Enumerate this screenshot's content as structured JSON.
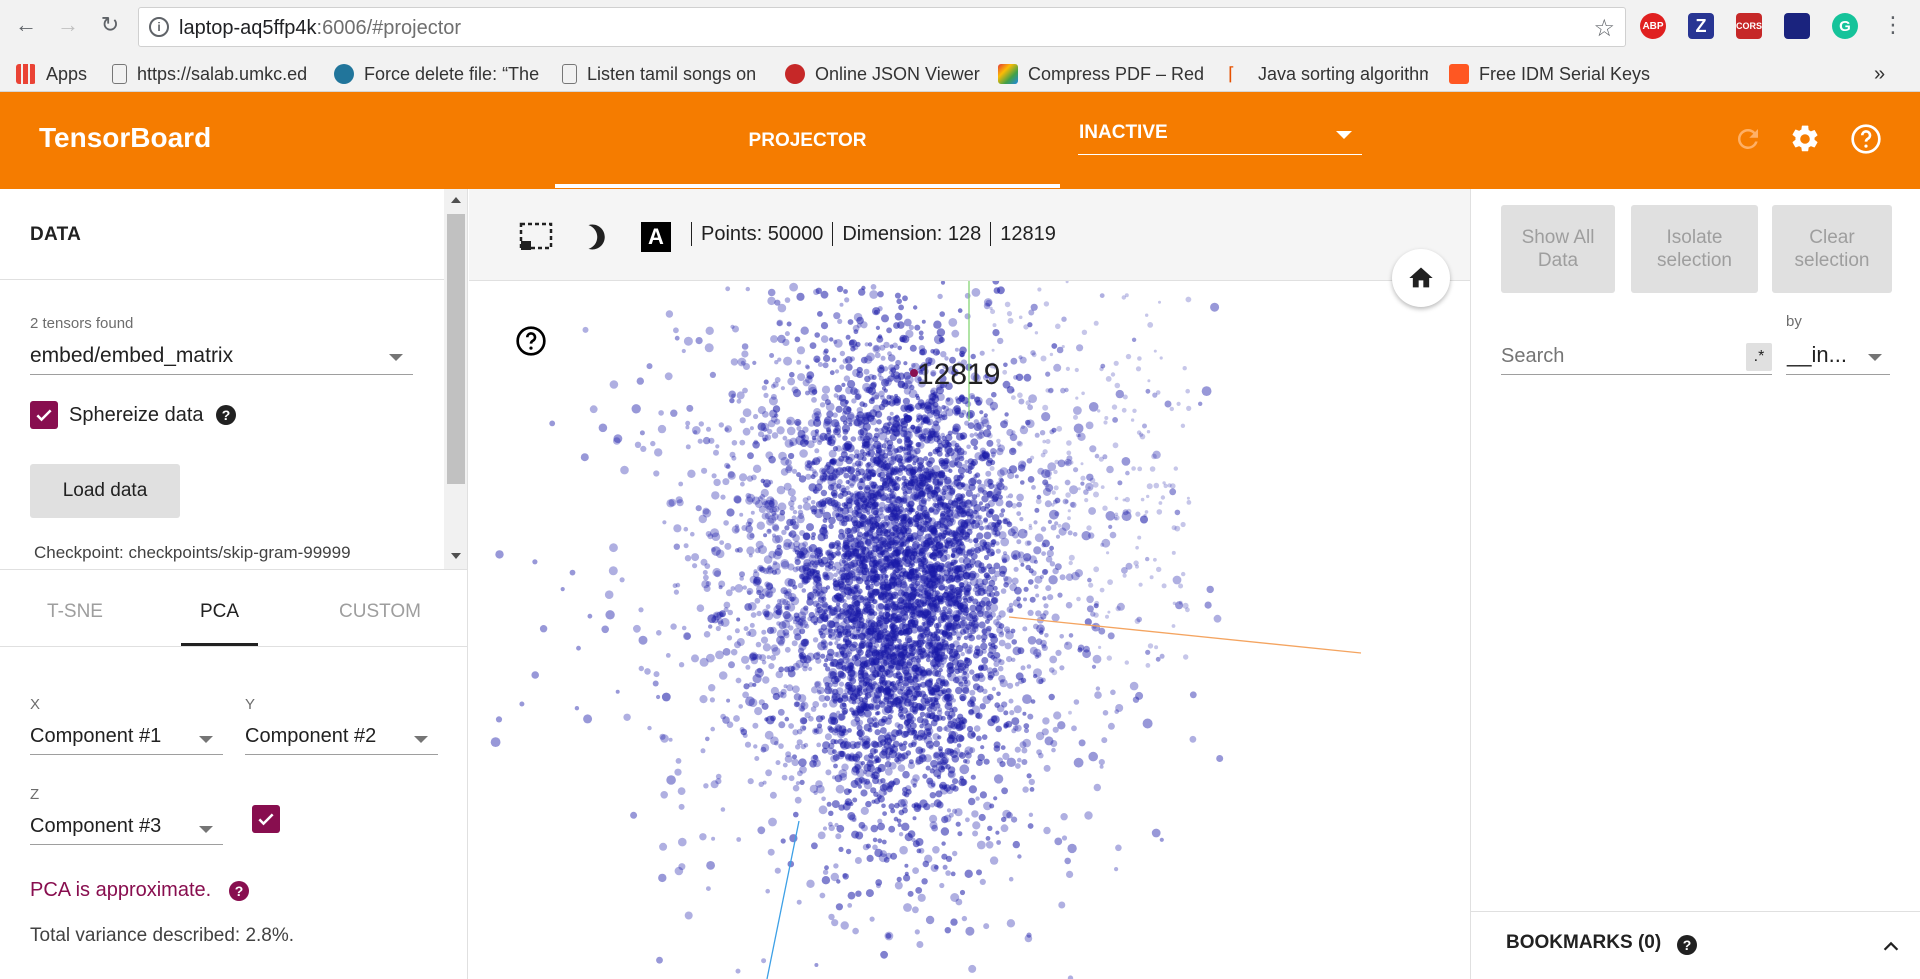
{
  "browser": {
    "url_host": "laptop-aq5ffp4k",
    "url_rest": ":6006/#projector",
    "bookmarks": [
      {
        "label": "Apps",
        "color": "#ea4335"
      },
      {
        "label": "https://salab.umkc.ed",
        "color": "#9e9e9e"
      },
      {
        "label": "Force delete file: “The",
        "color": "#21759b"
      },
      {
        "label": "Listen tamil songs on",
        "color": "#9e9e9e"
      },
      {
        "label": "Online JSON Viewer",
        "color": "#c62828"
      },
      {
        "label": "Compress PDF – Redu",
        "color": "#fbbc05"
      },
      {
        "label": "Java sorting algorithm",
        "color": "#e65100"
      },
      {
        "label": "Free IDM Serial Keys",
        "color": "#ff5722"
      }
    ],
    "overflow_label": "»",
    "extensions": [
      "ABP",
      "Z",
      "CORS",
      "",
      "G"
    ]
  },
  "header": {
    "title": "TensorBoard",
    "tab": "PROJECTOR",
    "run_select": "INACTIVE",
    "accent": "#f57c00"
  },
  "data_panel": {
    "title": "DATA",
    "tensors_found": "2 tensors found",
    "tensor_selected": "embed/embed_matrix",
    "sphereize_label": "Sphereize data",
    "sphereize_checked": true,
    "load_button": "Load data",
    "checkpoint": "Checkpoint: checkpoints/skip-gram-99999"
  },
  "projection": {
    "tabs": [
      "T-SNE",
      "PCA",
      "CUSTOM"
    ],
    "active_tab": "PCA",
    "x_label": "X",
    "x_value": "Component #1",
    "y_label": "Y",
    "y_value": "Component #2",
    "z_label": "Z",
    "z_value": "Component #3",
    "z_enabled": true,
    "approx_note": "PCA is approximate.",
    "variance": "Total variance described: 2.8%."
  },
  "toolbar": {
    "select_icon": "rect-select-icon",
    "night_icon": "night-mode-icon",
    "label_icon": "labels-icon",
    "label_icon_text": "A",
    "points": "Points: 50000",
    "dimension": "Dimension: 128",
    "selected_label": "12819"
  },
  "scatter": {
    "point_color": "#1a1aa8",
    "highlight_label": "12819",
    "highlight_color": "#880e4f"
  },
  "inspector": {
    "show_all": "Show All Data",
    "isolate": "Isolate selection",
    "clear": "Clear selection",
    "search_placeholder": "Search",
    "regex_label": ".*",
    "by_label": "by",
    "by_value": "__in...",
    "bookmarks": "BOOKMARKS (0)"
  }
}
